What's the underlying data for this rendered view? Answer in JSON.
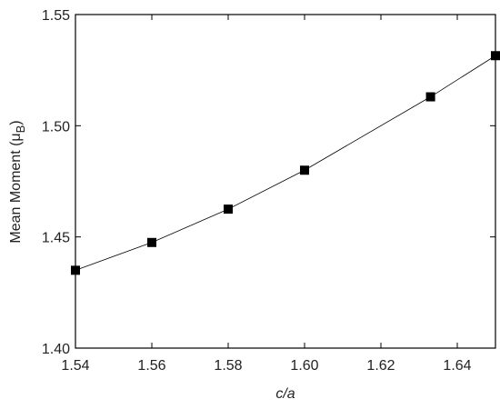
{
  "chart_data": {
    "type": "scatter-line",
    "x_label": "c/a",
    "y_label": [
      "Mean Moment (μ",
      "B",
      ")"
    ],
    "x": [
      1.54,
      1.56,
      1.58,
      1.6,
      1.633,
      1.65
    ],
    "series": [
      {
        "color": "#000000",
        "values": [
          1.435,
          1.4475,
          1.4625,
          1.48,
          1.513,
          1.5315
        ]
      }
    ],
    "xlim": [
      1.54,
      1.65
    ],
    "xticks": [
      1.54,
      1.56,
      1.58,
      {
        "value": 1.6,
        "label": "1.60"
      },
      1.62,
      1.64
    ],
    "ylim": [
      1.4,
      1.55
    ],
    "yticks": [
      {
        "value": 1.4,
        "label": "1.40"
      },
      1.45,
      {
        "value": 1.5,
        "label": "1.50"
      },
      1.55
    ]
  }
}
